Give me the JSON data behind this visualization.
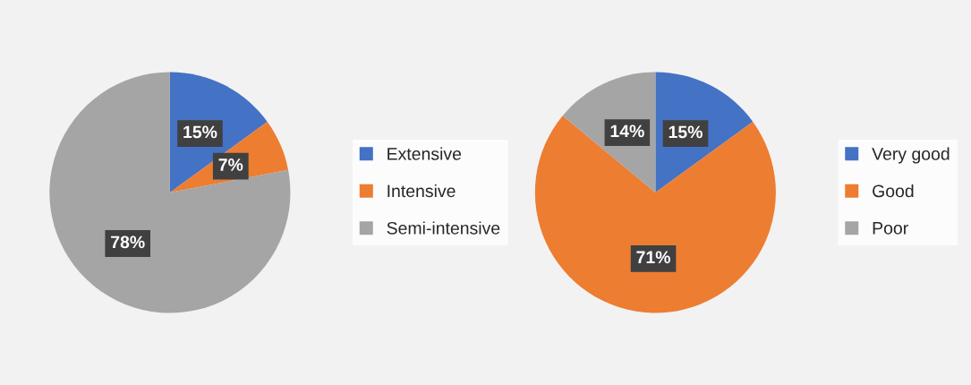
{
  "chart_data": [
    {
      "type": "pie",
      "categories": [
        "Extensive",
        "Intensive",
        "Semi-intensive"
      ],
      "values": [
        15,
        7,
        78
      ],
      "colors": [
        "#4472c4",
        "#ed7d31",
        "#a5a5a5"
      ],
      "value_labels": [
        "15%",
        "7%",
        "78%"
      ],
      "legend": "right"
    },
    {
      "type": "pie",
      "categories": [
        "Very good",
        "Good",
        "Poor"
      ],
      "values": [
        15,
        71,
        14
      ],
      "colors": [
        "#4472c4",
        "#ed7d31",
        "#a5a5a5"
      ],
      "value_labels": [
        "15%",
        "71%",
        "14%"
      ],
      "legend": "right"
    }
  ]
}
